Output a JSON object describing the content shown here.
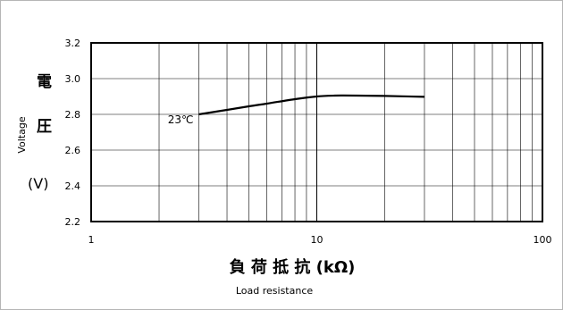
{
  "chart_data": {
    "type": "line",
    "xscale": "log",
    "xlim": [
      1,
      100
    ],
    "ylim": [
      2.2,
      3.2
    ],
    "xticks": [
      "1",
      "10",
      "100"
    ],
    "yticks": [
      "2.2",
      "2.4",
      "2.6",
      "2.8",
      "3.0",
      "3.2"
    ],
    "xlabel_jp": "負 荷 抵 抗 (kΩ)",
    "xlabel_en": "Load resistance",
    "ylabel_en": "Voltage",
    "ylabel_jp": [
      "電",
      "圧",
      "(V)"
    ],
    "grid": true,
    "series": [
      {
        "name": "23℃",
        "x": [
          3,
          4,
          5,
          6,
          8,
          10,
          12,
          15,
          20,
          30
        ],
        "y": [
          2.8,
          2.825,
          2.845,
          2.86,
          2.885,
          2.9,
          2.905,
          2.905,
          2.903,
          2.898
        ]
      }
    ]
  }
}
